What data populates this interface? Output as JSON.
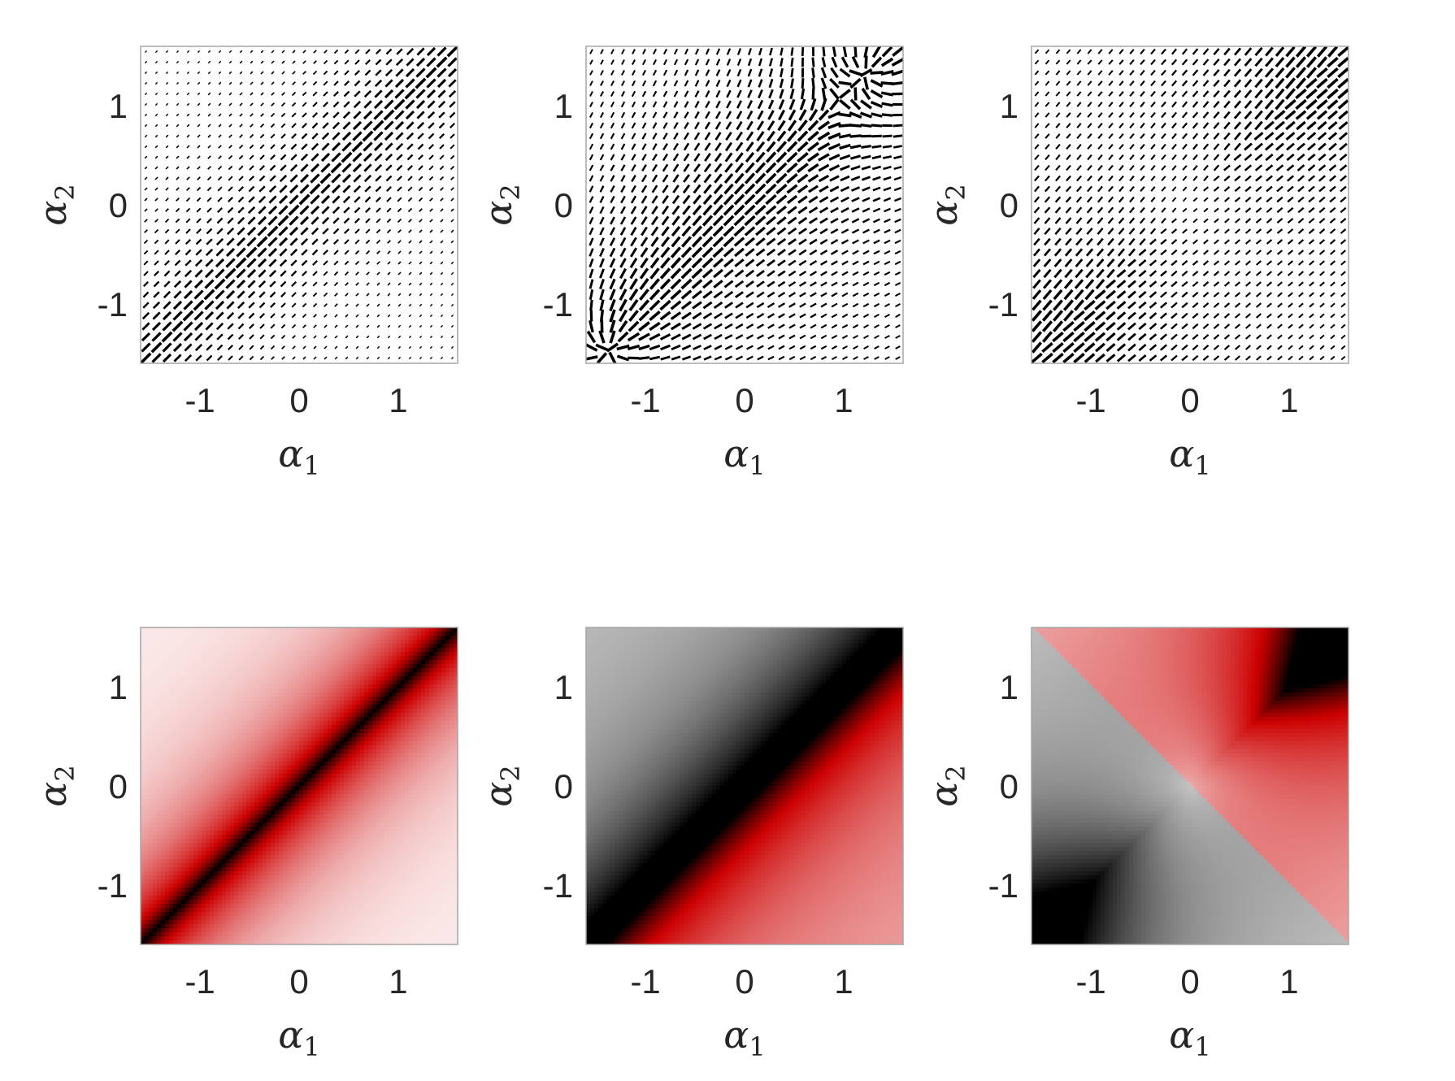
{
  "figure": {
    "rows": 2,
    "cols": 3
  },
  "chart_data": [
    {
      "id": "quiver-a",
      "type": "quiver",
      "panel": 0,
      "field": "diagonal-band",
      "xlabel": "α",
      "xlabel_sub": "1",
      "ylabel": "α",
      "ylabel_sub": "2",
      "xlim": [
        -1.6,
        1.6
      ],
      "ylim": [
        -1.6,
        1.6
      ],
      "xticks": [
        -1,
        0,
        1
      ],
      "yticks": [
        -1,
        0,
        1
      ],
      "grid": false,
      "colors": {
        "arrow": "#000000"
      }
    },
    {
      "id": "quiver-b",
      "type": "quiver",
      "panel": 1,
      "field": "corner-singularities",
      "xlabel": "α",
      "xlabel_sub": "1",
      "ylabel": "α",
      "ylabel_sub": "2",
      "xlim": [
        -1.6,
        1.6
      ],
      "ylim": [
        -1.6,
        1.6
      ],
      "xticks": [
        -1,
        0,
        1
      ],
      "yticks": [
        -1,
        0,
        1
      ],
      "grid": false,
      "colors": {
        "arrow": "#000000"
      }
    },
    {
      "id": "quiver-c",
      "type": "quiver",
      "panel": 2,
      "field": "origin-singularity",
      "xlabel": "α",
      "xlabel_sub": "1",
      "ylabel": "α",
      "ylabel_sub": "2",
      "xlim": [
        -1.6,
        1.6
      ],
      "ylim": [
        -1.6,
        1.6
      ],
      "xticks": [
        -1,
        0,
        1
      ],
      "yticks": [
        -1,
        0,
        1
      ],
      "grid": false,
      "colors": {
        "arrow": "#000000"
      }
    },
    {
      "id": "heatmap-a",
      "type": "heatmap",
      "panel": 3,
      "field": "diagonal-band",
      "xlabel": "α",
      "xlabel_sub": "1",
      "ylabel": "α",
      "ylabel_sub": "2",
      "xlim": [
        -1.6,
        1.6
      ],
      "ylim": [
        -1.6,
        1.6
      ],
      "xticks": [
        -1,
        0,
        1
      ],
      "yticks": [
        -1,
        0,
        1
      ],
      "grid": false,
      "colors": {
        "low": "#ffffff",
        "mid": "#cc0000",
        "high": "#000000",
        "neg": "#888888"
      }
    },
    {
      "id": "heatmap-b",
      "type": "heatmap",
      "panel": 4,
      "field": "corner-singularities",
      "xlabel": "α",
      "xlabel_sub": "1",
      "ylabel": "α",
      "ylabel_sub": "2",
      "xlim": [
        -1.6,
        1.6
      ],
      "ylim": [
        -1.6,
        1.6
      ],
      "xticks": [
        -1,
        0,
        1
      ],
      "yticks": [
        -1,
        0,
        1
      ],
      "grid": false,
      "colors": {
        "low": "#ffffff",
        "mid": "#cc0000",
        "high": "#000000",
        "neg": "#888888"
      }
    },
    {
      "id": "heatmap-c",
      "type": "heatmap",
      "panel": 5,
      "field": "origin-singularity",
      "xlabel": "α",
      "xlabel_sub": "1",
      "ylabel": "α",
      "ylabel_sub": "2",
      "xlim": [
        -1.6,
        1.6
      ],
      "ylim": [
        -1.6,
        1.6
      ],
      "xticks": [
        -1,
        0,
        1
      ],
      "yticks": [
        -1,
        0,
        1
      ],
      "grid": false,
      "colors": {
        "low": "#ffffff",
        "mid": "#cc0000",
        "high": "#000000",
        "neg": "#888888"
      }
    }
  ]
}
